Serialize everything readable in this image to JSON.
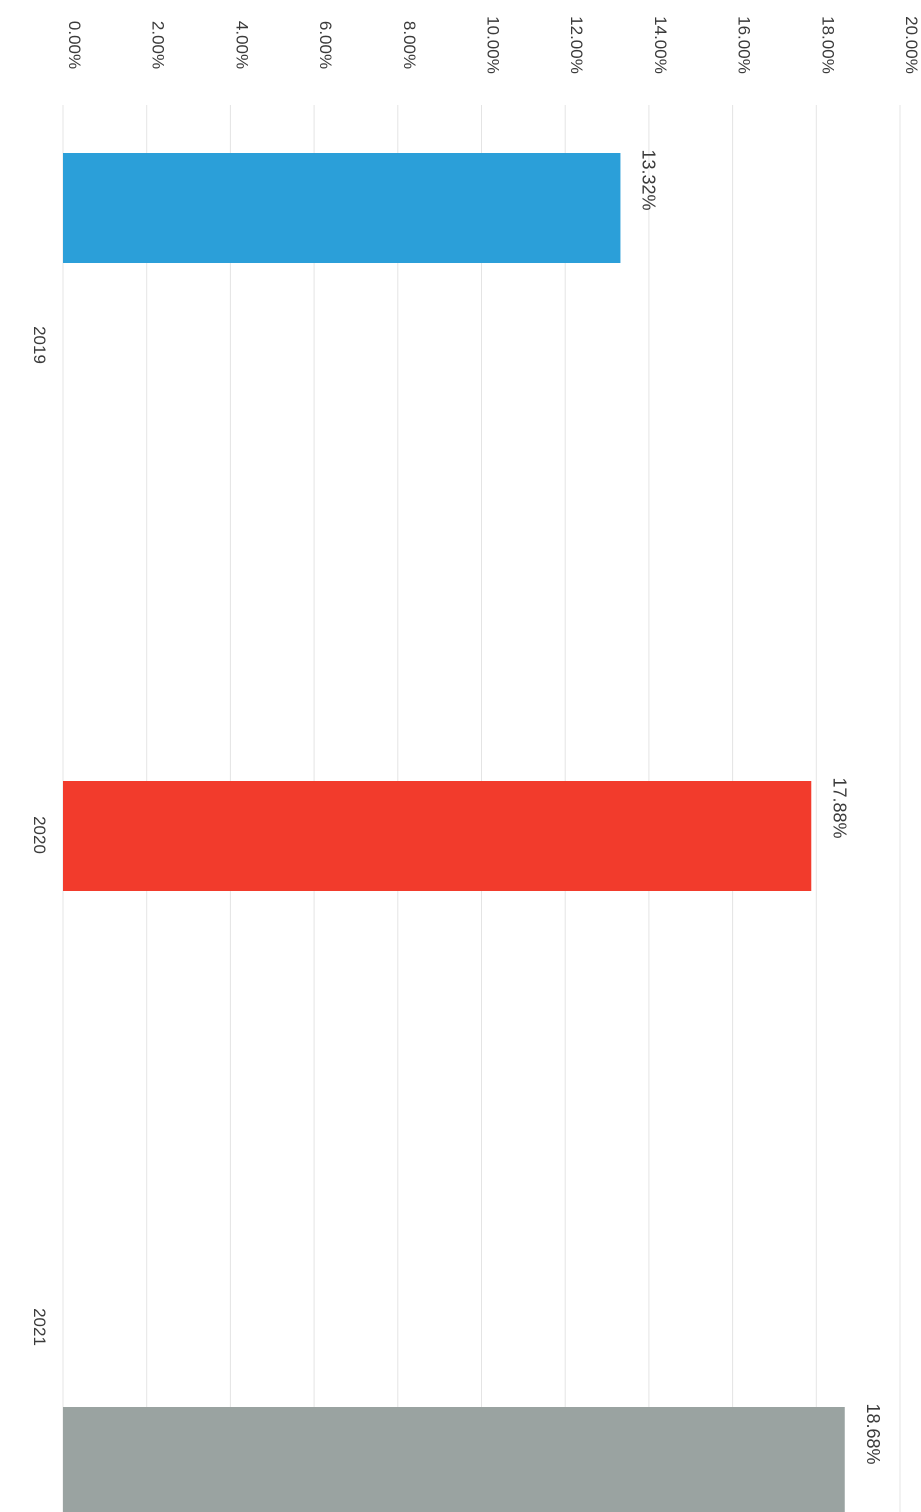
{
  "chart_data": {
    "type": "bar",
    "orientation": "vertical",
    "categories": [
      "2019",
      "2020",
      "2021"
    ],
    "values": [
      13.32,
      17.88,
      18.68
    ],
    "data_labels": [
      "13.32%",
      "17.88%",
      "18.68%"
    ],
    "value_unit": "%",
    "ylim": [
      0,
      20
    ],
    "yticks": [
      0,
      2,
      4,
      6,
      8,
      10,
      12,
      14,
      16,
      18,
      20
    ],
    "ytick_labels": [
      "0.00%",
      "2.00%",
      "4.00%",
      "6.00%",
      "8.00%",
      "10.00%",
      "12.00%",
      "14.00%",
      "16.00%",
      "18.00%",
      "20.00%"
    ],
    "colors": [
      "#2b9fd9",
      "#f23b2c",
      "#9aa3a1"
    ],
    "grid": true,
    "legend": "none",
    "rotation": "rotated 90 degrees clockwise"
  }
}
